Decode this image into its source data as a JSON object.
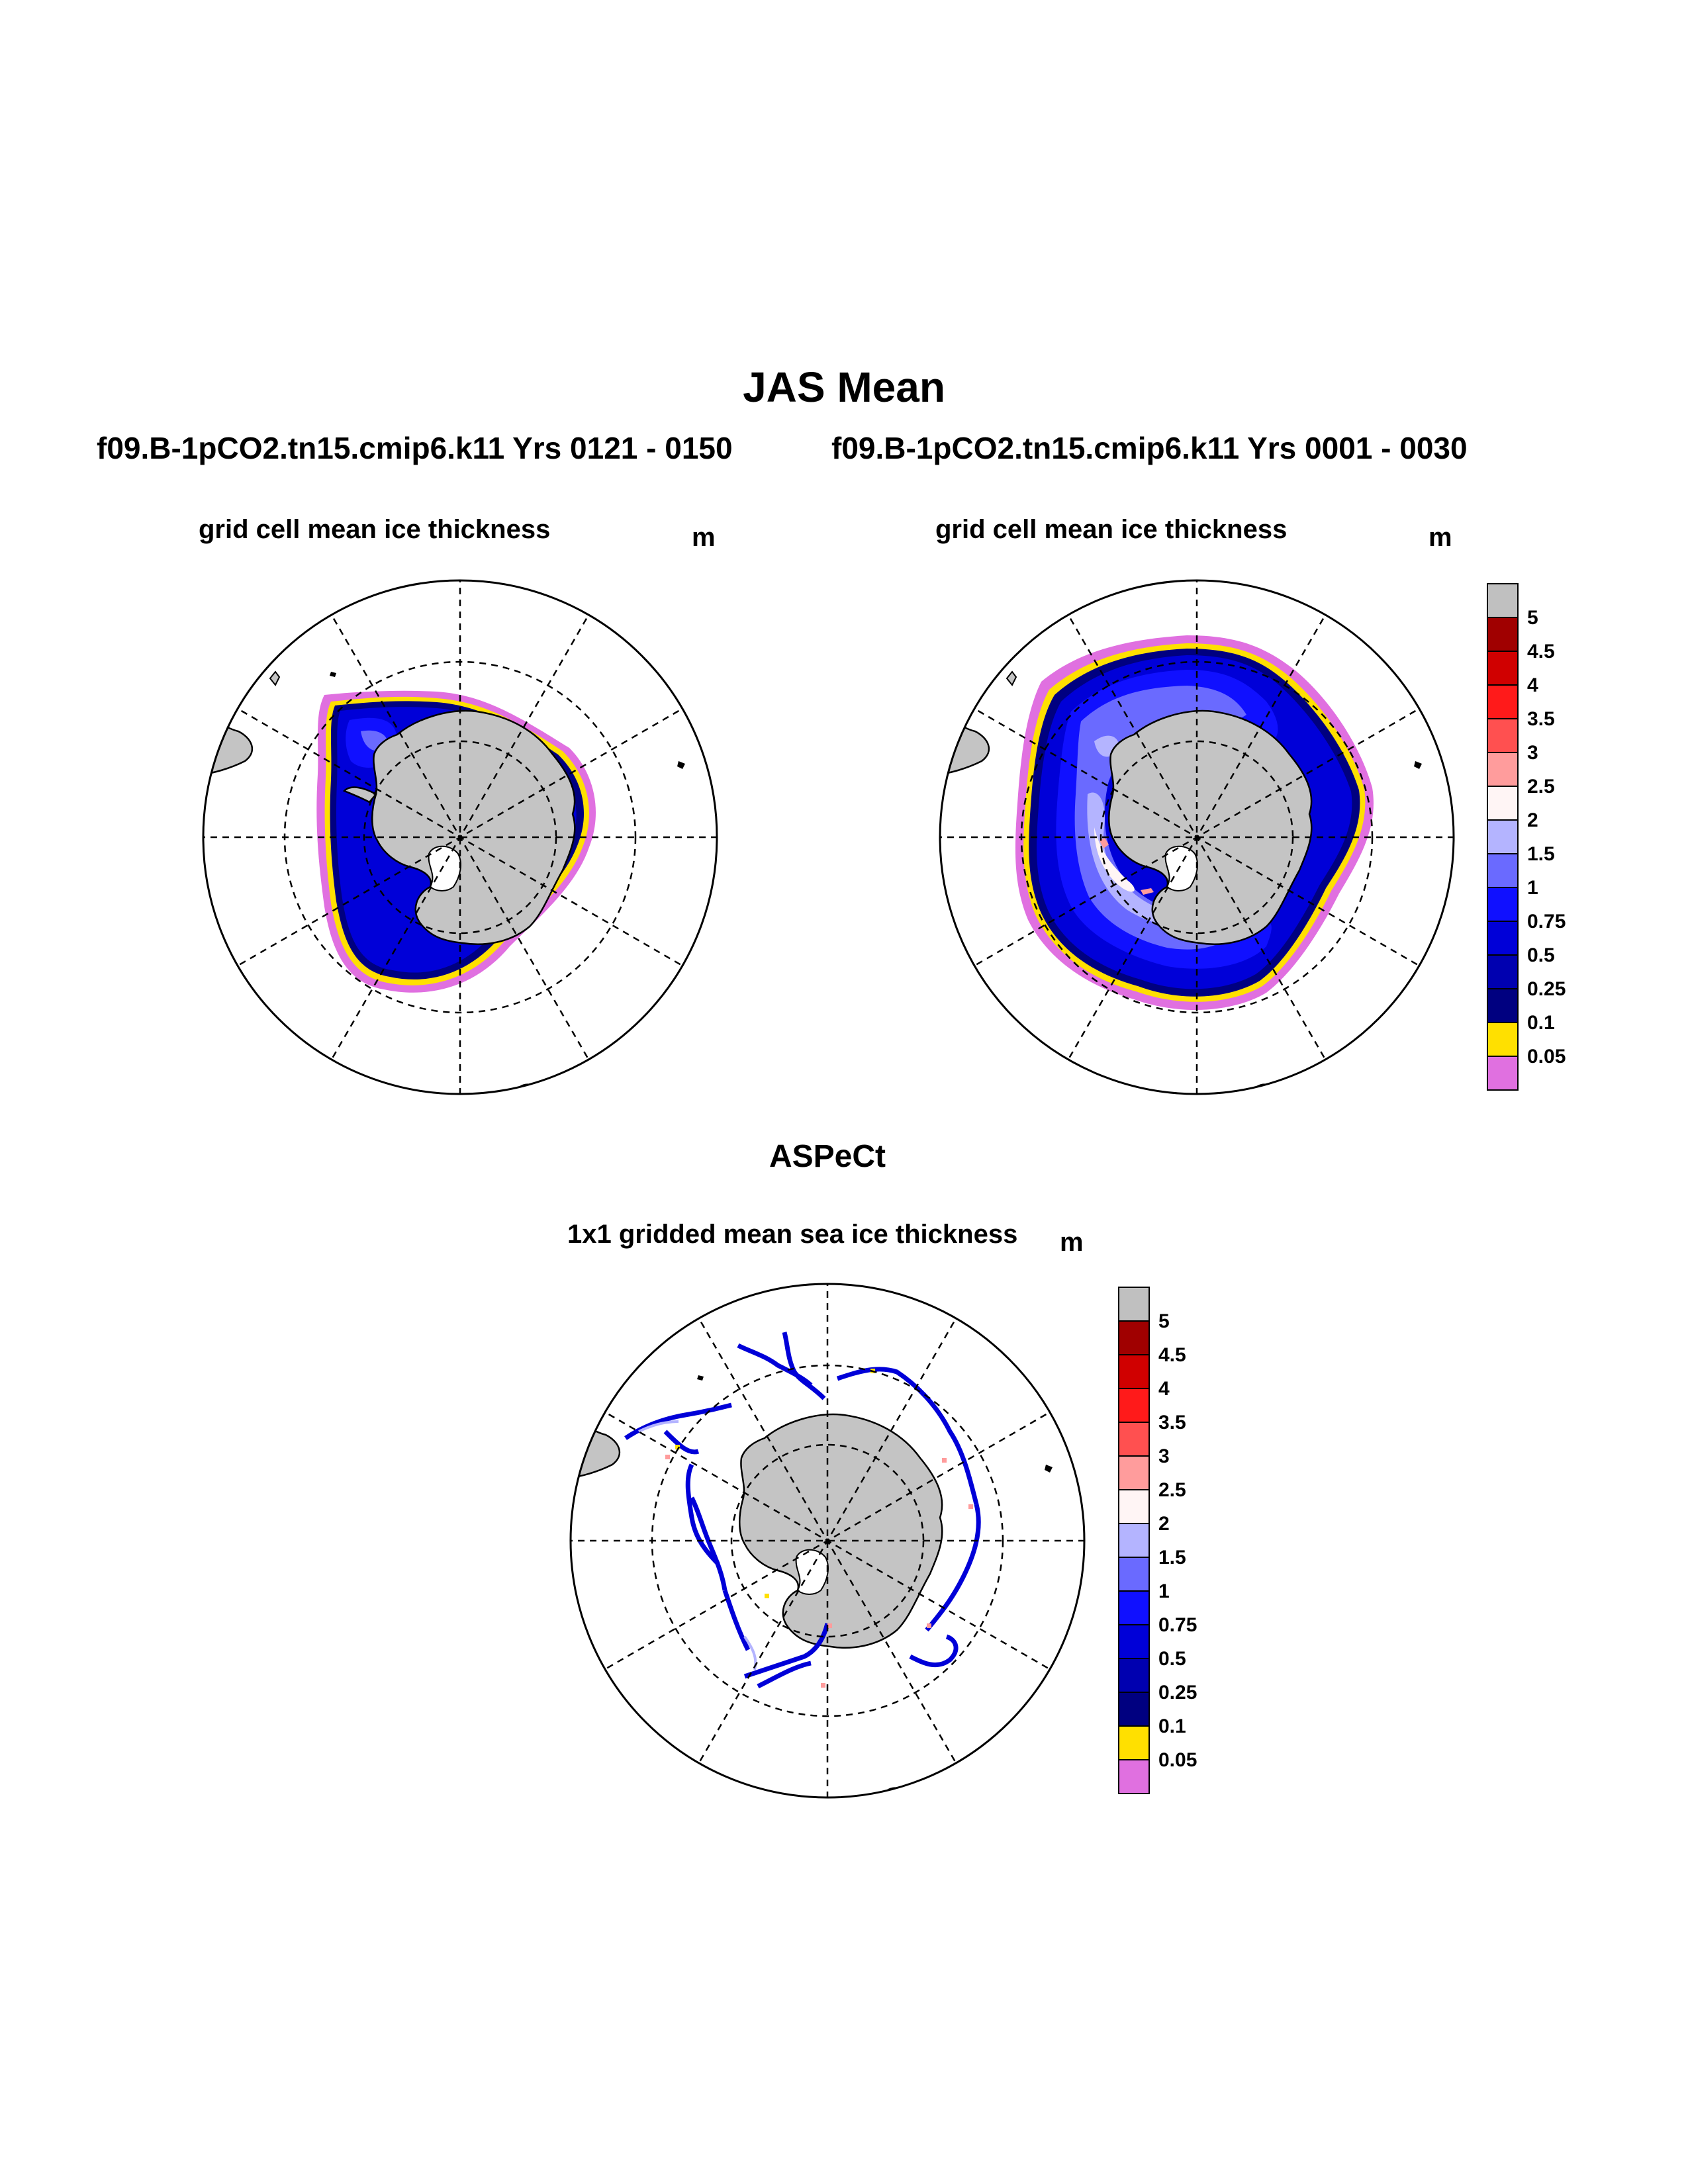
{
  "header": {
    "title": "JAS Mean",
    "left_subtitle": "f09.B-1pCO2.tn15.cmip6.k11  Yrs 0121 - 0150",
    "right_subtitle": "f09.B-1pCO2.tn15.cmip6.k11  Yrs 0001 - 0030"
  },
  "panels": {
    "top_left": {
      "title": "grid cell mean ice thickness",
      "units": "m"
    },
    "top_right": {
      "title": "grid cell mean ice thickness",
      "units": "m"
    },
    "bottom": {
      "heading": "ASPeCt",
      "title": "1x1 gridded mean sea ice thickness",
      "units": "m"
    }
  },
  "colorbar": {
    "labels": [
      "5",
      "4.5",
      "4",
      "3.5",
      "3",
      "2.5",
      "2",
      "1.5",
      "1",
      "0.75",
      "0.5",
      "0.25",
      "0.1",
      "0.05"
    ],
    "colors": [
      "#c0c0c0",
      "#a00000",
      "#d00000",
      "#ff1a1a",
      "#ff5050",
      "#ff9c9c",
      "#fff5f5",
      "#b4b4ff",
      "#6a6aff",
      "#1010ff",
      "#0000d8",
      "#0000b0",
      "#000080",
      "#ffe000",
      "#e070e0"
    ]
  },
  "colors": {
    "land": "#c4c4c4",
    "coastline": "#000000",
    "ocean": "#ffffff",
    "ice_edge_yellow": "#ffe000",
    "ice_margin_magenta": "#e070e0"
  }
}
